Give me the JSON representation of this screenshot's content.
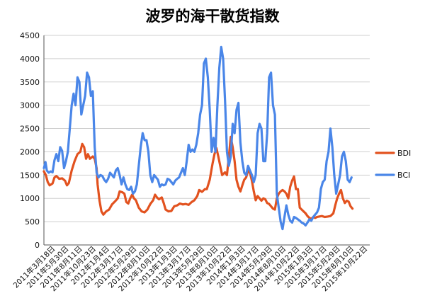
{
  "chart_data": {
    "type": "line",
    "title": "波罗的海干散货指数",
    "ylim": [
      0,
      4500
    ],
    "yticks": [
      0,
      500,
      1000,
      1500,
      2000,
      2500,
      3000,
      3500,
      4000,
      4500
    ],
    "grid": true,
    "legend_position": "right",
    "xticklabels": [
      "2011年3月18日",
      "2011年5月30日",
      "2011年8月11日",
      "2011年10月23日",
      "2012年1月4日",
      "2012年3月17日",
      "2012年5月29日",
      "2012年8月10日",
      "2012年10月22日",
      "2013年1月3日",
      "2013年3月17日",
      "2013年5月29日",
      "2013年8月10日",
      "2013年10月22日",
      "2014年1月3日",
      "2014年3月17日",
      "2014年5月29日",
      "2014年8月10日",
      "2014年10月22日",
      "2015年1月3日",
      "2015年3月17日",
      "2015年5月29日",
      "2015年8月10日",
      "2015年10月22日"
    ],
    "x_domain": [
      0,
      1700
    ],
    "series": [
      {
        "name": "BDI",
        "color": "#e2521f",
        "points": [
          [
            0,
            1580
          ],
          [
            10,
            1500
          ],
          [
            20,
            1350
          ],
          [
            30,
            1280
          ],
          [
            45,
            1320
          ],
          [
            55,
            1450
          ],
          [
            65,
            1480
          ],
          [
            80,
            1420
          ],
          [
            95,
            1430
          ],
          [
            110,
            1380
          ],
          [
            120,
            1280
          ],
          [
            130,
            1330
          ],
          [
            145,
            1600
          ],
          [
            160,
            1800
          ],
          [
            175,
            1950
          ],
          [
            190,
            2000
          ],
          [
            200,
            2170
          ],
          [
            210,
            2100
          ],
          [
            220,
            1850
          ],
          [
            230,
            1950
          ],
          [
            240,
            1850
          ],
          [
            255,
            1900
          ],
          [
            265,
            1850
          ],
          [
            275,
            1650
          ],
          [
            280,
            1300
          ],
          [
            290,
            950
          ],
          [
            300,
            720
          ],
          [
            310,
            650
          ],
          [
            325,
            720
          ],
          [
            340,
            760
          ],
          [
            355,
            870
          ],
          [
            370,
            930
          ],
          [
            385,
            1000
          ],
          [
            395,
            1150
          ],
          [
            410,
            1130
          ],
          [
            420,
            1100
          ],
          [
            430,
            920
          ],
          [
            440,
            890
          ],
          [
            450,
            1000
          ],
          [
            460,
            1080
          ],
          [
            470,
            1000
          ],
          [
            480,
            960
          ],
          [
            495,
            800
          ],
          [
            510,
            720
          ],
          [
            525,
            700
          ],
          [
            540,
            760
          ],
          [
            555,
            880
          ],
          [
            570,
            960
          ],
          [
            580,
            1080
          ],
          [
            590,
            1020
          ],
          [
            600,
            980
          ],
          [
            615,
            1020
          ],
          [
            625,
            900
          ],
          [
            635,
            760
          ],
          [
            650,
            720
          ],
          [
            665,
            730
          ],
          [
            680,
            830
          ],
          [
            695,
            850
          ],
          [
            710,
            890
          ],
          [
            725,
            870
          ],
          [
            740,
            880
          ],
          [
            755,
            860
          ],
          [
            770,
            920
          ],
          [
            785,
            960
          ],
          [
            800,
            1050
          ],
          [
            810,
            1180
          ],
          [
            825,
            1140
          ],
          [
            840,
            1200
          ],
          [
            850,
            1200
          ],
          [
            865,
            1400
          ],
          [
            880,
            1750
          ],
          [
            890,
            1950
          ],
          [
            900,
            2080
          ],
          [
            910,
            1900
          ],
          [
            920,
            1700
          ],
          [
            930,
            1500
          ],
          [
            945,
            1560
          ],
          [
            955,
            1500
          ],
          [
            965,
            1900
          ],
          [
            975,
            2320
          ],
          [
            985,
            2100
          ],
          [
            995,
            1800
          ],
          [
            1005,
            1400
          ],
          [
            1015,
            1250
          ],
          [
            1025,
            1150
          ],
          [
            1035,
            1280
          ],
          [
            1045,
            1400
          ],
          [
            1055,
            1450
          ],
          [
            1065,
            1600
          ],
          [
            1075,
            1550
          ],
          [
            1085,
            1380
          ],
          [
            1095,
            1150
          ],
          [
            1105,
            960
          ],
          [
            1115,
            1050
          ],
          [
            1125,
            1000
          ],
          [
            1135,
            950
          ],
          [
            1145,
            1000
          ],
          [
            1155,
            980
          ],
          [
            1165,
            900
          ],
          [
            1175,
            880
          ],
          [
            1185,
            830
          ],
          [
            1195,
            780
          ],
          [
            1205,
            760
          ],
          [
            1215,
            1000
          ],
          [
            1225,
            1100
          ],
          [
            1235,
            1150
          ],
          [
            1245,
            1180
          ],
          [
            1255,
            1150
          ],
          [
            1265,
            1100
          ],
          [
            1275,
            1000
          ],
          [
            1285,
            1250
          ],
          [
            1295,
            1380
          ],
          [
            1305,
            1470
          ],
          [
            1315,
            1200
          ],
          [
            1325,
            1200
          ],
          [
            1335,
            800
          ],
          [
            1345,
            760
          ],
          [
            1355,
            720
          ],
          [
            1365,
            680
          ],
          [
            1375,
            620
          ],
          [
            1385,
            580
          ],
          [
            1395,
            560
          ],
          [
            1405,
            600
          ],
          [
            1415,
            580
          ],
          [
            1425,
            600
          ],
          [
            1435,
            610
          ],
          [
            1450,
            620
          ],
          [
            1465,
            600
          ],
          [
            1480,
            610
          ],
          [
            1495,
            620
          ],
          [
            1510,
            680
          ],
          [
            1520,
            850
          ],
          [
            1530,
            1000
          ],
          [
            1540,
            1100
          ],
          [
            1550,
            1180
          ],
          [
            1560,
            1000
          ],
          [
            1570,
            900
          ],
          [
            1580,
            950
          ],
          [
            1590,
            930
          ],
          [
            1600,
            830
          ],
          [
            1610,
            780
          ]
        ]
      },
      {
        "name": "BCI",
        "color": "#4a86e8",
        "points": [
          [
            0,
            1650
          ],
          [
            8,
            1780
          ],
          [
            15,
            1600
          ],
          [
            25,
            1550
          ],
          [
            35,
            1580
          ],
          [
            45,
            1560
          ],
          [
            55,
            1820
          ],
          [
            65,
            1950
          ],
          [
            75,
            1800
          ],
          [
            85,
            2100
          ],
          [
            95,
            2020
          ],
          [
            105,
            1650
          ],
          [
            115,
            1800
          ],
          [
            125,
            2000
          ],
          [
            135,
            2500
          ],
          [
            145,
            3000
          ],
          [
            155,
            3250
          ],
          [
            165,
            3000
          ],
          [
            175,
            3600
          ],
          [
            185,
            3500
          ],
          [
            195,
            2800
          ],
          [
            205,
            3000
          ],
          [
            215,
            3200
          ],
          [
            225,
            3700
          ],
          [
            235,
            3600
          ],
          [
            245,
            3200
          ],
          [
            255,
            3300
          ],
          [
            265,
            2100
          ],
          [
            275,
            1550
          ],
          [
            285,
            1450
          ],
          [
            295,
            1500
          ],
          [
            305,
            1480
          ],
          [
            315,
            1400
          ],
          [
            325,
            1350
          ],
          [
            335,
            1420
          ],
          [
            345,
            1550
          ],
          [
            355,
            1500
          ],
          [
            365,
            1450
          ],
          [
            375,
            1600
          ],
          [
            385,
            1650
          ],
          [
            395,
            1500
          ],
          [
            405,
            1300
          ],
          [
            415,
            1450
          ],
          [
            425,
            1300
          ],
          [
            435,
            1200
          ],
          [
            445,
            1180
          ],
          [
            455,
            1250
          ],
          [
            465,
            1100
          ],
          [
            475,
            1150
          ],
          [
            485,
            1300
          ],
          [
            495,
            1700
          ],
          [
            505,
            2100
          ],
          [
            515,
            2400
          ],
          [
            525,
            2250
          ],
          [
            535,
            2250
          ],
          [
            545,
            2000
          ],
          [
            555,
            1500
          ],
          [
            565,
            1350
          ],
          [
            575,
            1500
          ],
          [
            585,
            1450
          ],
          [
            595,
            1400
          ],
          [
            605,
            1250
          ],
          [
            615,
            1300
          ],
          [
            625,
            1280
          ],
          [
            635,
            1300
          ],
          [
            645,
            1420
          ],
          [
            655,
            1400
          ],
          [
            665,
            1350
          ],
          [
            675,
            1300
          ],
          [
            685,
            1380
          ],
          [
            695,
            1420
          ],
          [
            705,
            1450
          ],
          [
            715,
            1550
          ],
          [
            725,
            1650
          ],
          [
            735,
            1500
          ],
          [
            745,
            1800
          ],
          [
            755,
            2150
          ],
          [
            765,
            2000
          ],
          [
            775,
            2050
          ],
          [
            785,
            2000
          ],
          [
            795,
            2150
          ],
          [
            805,
            2400
          ],
          [
            815,
            2800
          ],
          [
            825,
            3000
          ],
          [
            835,
            3900
          ],
          [
            845,
            4000
          ],
          [
            855,
            3600
          ],
          [
            865,
            2900
          ],
          [
            875,
            2000
          ],
          [
            885,
            2300
          ],
          [
            895,
            2000
          ],
          [
            905,
            3000
          ],
          [
            915,
            3800
          ],
          [
            925,
            4250
          ],
          [
            935,
            4000
          ],
          [
            945,
            3100
          ],
          [
            955,
            2000
          ],
          [
            965,
            1700
          ],
          [
            975,
            1900
          ],
          [
            985,
            2600
          ],
          [
            995,
            2400
          ],
          [
            1005,
            2900
          ],
          [
            1015,
            3050
          ],
          [
            1025,
            2200
          ],
          [
            1035,
            1800
          ],
          [
            1045,
            1550
          ],
          [
            1055,
            1500
          ],
          [
            1065,
            1700
          ],
          [
            1075,
            1600
          ],
          [
            1085,
            1500
          ],
          [
            1095,
            1350
          ],
          [
            1105,
            1500
          ],
          [
            1115,
            2400
          ],
          [
            1125,
            2600
          ],
          [
            1135,
            2500
          ],
          [
            1145,
            1800
          ],
          [
            1155,
            1800
          ],
          [
            1165,
            2400
          ],
          [
            1175,
            3600
          ],
          [
            1185,
            3700
          ],
          [
            1195,
            3000
          ],
          [
            1205,
            2800
          ],
          [
            1215,
            1100
          ],
          [
            1225,
            800
          ],
          [
            1235,
            500
          ],
          [
            1245,
            340
          ],
          [
            1255,
            600
          ],
          [
            1265,
            850
          ],
          [
            1275,
            650
          ],
          [
            1285,
            520
          ],
          [
            1295,
            480
          ],
          [
            1305,
            600
          ],
          [
            1315,
            580
          ],
          [
            1325,
            550
          ],
          [
            1335,
            520
          ],
          [
            1345,
            480
          ],
          [
            1355,
            460
          ],
          [
            1365,
            420
          ],
          [
            1375,
            480
          ],
          [
            1385,
            550
          ],
          [
            1395,
            520
          ],
          [
            1405,
            600
          ],
          [
            1415,
            650
          ],
          [
            1425,
            700
          ],
          [
            1435,
            800
          ],
          [
            1445,
            1200
          ],
          [
            1455,
            1350
          ],
          [
            1465,
            1400
          ],
          [
            1475,
            1800
          ],
          [
            1485,
            2000
          ],
          [
            1495,
            2500
          ],
          [
            1505,
            2100
          ],
          [
            1515,
            1500
          ],
          [
            1525,
            1100
          ],
          [
            1535,
            1300
          ],
          [
            1545,
            1500
          ],
          [
            1555,
            1900
          ],
          [
            1565,
            2000
          ],
          [
            1575,
            1800
          ],
          [
            1585,
            1400
          ],
          [
            1595,
            1350
          ],
          [
            1605,
            1450
          ]
        ]
      }
    ]
  }
}
